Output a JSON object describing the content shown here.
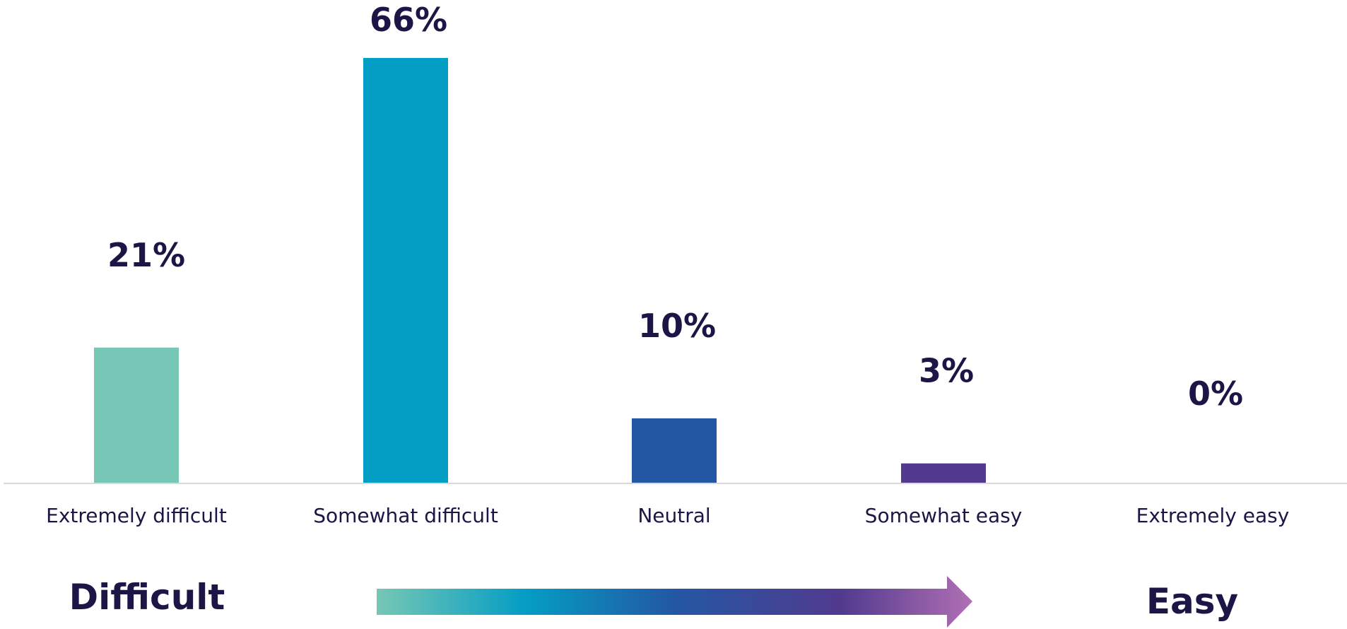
{
  "chart_data": {
    "type": "bar",
    "categories": [
      "Extremely difficult",
      "Somewhat difficult",
      "Neutral",
      "Somewhat easy",
      "Extremely easy"
    ],
    "values": [
      21,
      66,
      10,
      3,
      0
    ],
    "value_labels": [
      "21%",
      "66%",
      "10%",
      "3%",
      "0%"
    ],
    "colors": [
      "#76c7b5",
      "#049dc4",
      "#2357a4",
      "#523a8e",
      "#a86fb0"
    ],
    "ylim": [
      0,
      66
    ],
    "grid": false,
    "legend": "none"
  },
  "scale": {
    "left_label": "Difficult",
    "right_label": "Easy",
    "gradient": [
      "#76c7b5",
      "#049dc4",
      "#2357a4",
      "#523a8e",
      "#b06fb4"
    ]
  }
}
